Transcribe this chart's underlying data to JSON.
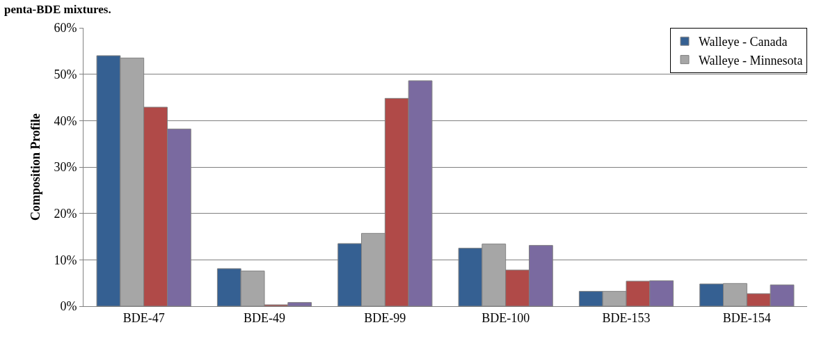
{
  "chart_data": {
    "type": "bar",
    "title": "penta-BDE mixtures.",
    "ylabel": "Composition Profile",
    "categories": [
      "BDE-47",
      "BDE-49",
      "BDE-99",
      "BDE-100",
      "BDE-153",
      "BDE-154"
    ],
    "series": [
      {
        "name": "Walleye - Canada",
        "color": "#356092",
        "values": [
          54,
          8.1,
          13.5,
          12.5,
          3.2,
          4.8
        ]
      },
      {
        "name": "Walleye - Minnesota",
        "color": "#a6a6a6",
        "values": [
          53.5,
          7.6,
          15.7,
          13.4,
          3.2,
          4.9
        ]
      },
      {
        "color": "#b04a48",
        "values": [
          42.9,
          0.3,
          44.8,
          7.8,
          5.4,
          2.7
        ]
      },
      {
        "color": "#7a6aa0",
        "values": [
          38.2,
          0.8,
          48.6,
          13.1,
          5.5,
          4.6
        ]
      }
    ],
    "ylim": [
      0,
      60
    ],
    "yticks": [
      {
        "value": 0,
        "label": "0%"
      },
      {
        "value": 10,
        "label": "10%"
      },
      {
        "value": 20,
        "label": "20%"
      },
      {
        "value": 30,
        "label": "30%"
      },
      {
        "value": 40,
        "label": "40%"
      },
      {
        "value": 50,
        "label": "50%"
      },
      {
        "value": 60,
        "label": "60%"
      }
    ],
    "grid": "y",
    "legend": "top right"
  }
}
